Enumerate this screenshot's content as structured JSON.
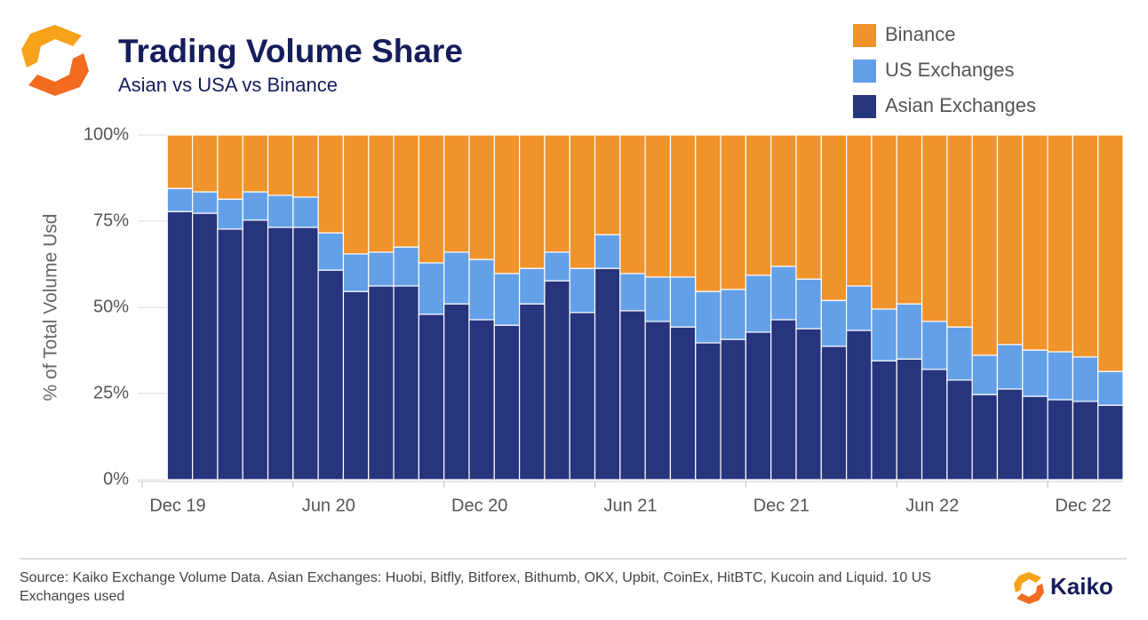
{
  "chart_data": {
    "type": "stacked_bar",
    "title": "Trading Volume Share",
    "subtitle": "Asian vs USA vs Binance",
    "y_label": "% of Total Volume Usd",
    "x": [
      1.5,
      2.5,
      3.5,
      4.5,
      5.5,
      6.5,
      7.5,
      8.5,
      9.5,
      10.5,
      11.5,
      12.5,
      13.5,
      14.5,
      15.5,
      16.5,
      17.5,
      18.5,
      19.5,
      20.5,
      21.5,
      22.5,
      23.5,
      24.5,
      25.5,
      26.5,
      27.5,
      28.5,
      29.5,
      30.5,
      31.5,
      32.5,
      33.5,
      34.5,
      35.5,
      36.5,
      37.5,
      38.5
    ],
    "xlim": [
      0,
      39
    ],
    "xticks": [
      {
        "value": 0,
        "label": "Dec 19"
      },
      {
        "value": 6,
        "label": "Jun 20"
      },
      {
        "value": 12,
        "label": "Dec 20"
      },
      {
        "value": 18,
        "label": "Jun 21"
      },
      {
        "value": 24,
        "label": "Dec 21"
      },
      {
        "value": 30,
        "label": "Jun 22"
      },
      {
        "value": 36,
        "label": "Dec 22"
      }
    ],
    "ylim": [
      0,
      100
    ],
    "yticks": [
      {
        "value": 0,
        "label": "0%"
      },
      {
        "value": 25,
        "label": "25%"
      },
      {
        "value": 50,
        "label": "50%"
      },
      {
        "value": 75,
        "label": "75%"
      },
      {
        "value": 100,
        "label": "100%"
      }
    ],
    "grid": true,
    "legend": "top-right",
    "series": [
      {
        "name": "Asian Exchanges",
        "color": "#27357e",
        "values": [
          77.8,
          77.3,
          72.7,
          75.3,
          73.2,
          73.2,
          60.8,
          54.6,
          56.2,
          56.2,
          48,
          51,
          46.4,
          44.8,
          51,
          57.7,
          48.5,
          61.3,
          49,
          45.9,
          44.3,
          39.7,
          40.7,
          42.8,
          46.4,
          43.8,
          38.7,
          43.3,
          34.5,
          35,
          32,
          28.9,
          24.7,
          26.3,
          24.2,
          23.2,
          22.7,
          21.6
        ]
      },
      {
        "name": "US Exchanges",
        "color": "#63a0e8",
        "values": [
          6.7,
          6.2,
          8.7,
          8.2,
          9.3,
          8.8,
          10.8,
          10.9,
          9.8,
          11.3,
          14.9,
          15,
          17.5,
          15,
          10.3,
          8.3,
          12.8,
          9.8,
          10.8,
          12.9,
          14.5,
          14.9,
          14.5,
          16.5,
          15.5,
          14.4,
          13.3,
          12.9,
          15,
          16,
          13.9,
          15.4,
          11.4,
          12.9,
          13.4,
          13.9,
          12.9,
          9.8
        ]
      },
      {
        "name": "Binance",
        "color": "#f0932b",
        "values": [
          15.5,
          16.5,
          18.6,
          16.5,
          17.5,
          18,
          28.4,
          34.5,
          34,
          32.5,
          37.1,
          34,
          36.1,
          40.2,
          38.7,
          34,
          38.7,
          28.9,
          40.2,
          41.2,
          41.2,
          45.4,
          44.8,
          40.7,
          38.1,
          41.8,
          48,
          43.8,
          50.5,
          49,
          54.1,
          55.7,
          63.9,
          60.8,
          62.4,
          62.9,
          64.4,
          68.6
        ]
      }
    ],
    "source": "Source: Kaiko Exchange Volume Data. Asian Exchanges: Huobi, Bitfly, Bitforex, Bithumb, OKX, Upbit, CoinEx, HitBTC, Kucoin and Liquid. 10 US Exchanges used",
    "brand": "Kaiko"
  }
}
